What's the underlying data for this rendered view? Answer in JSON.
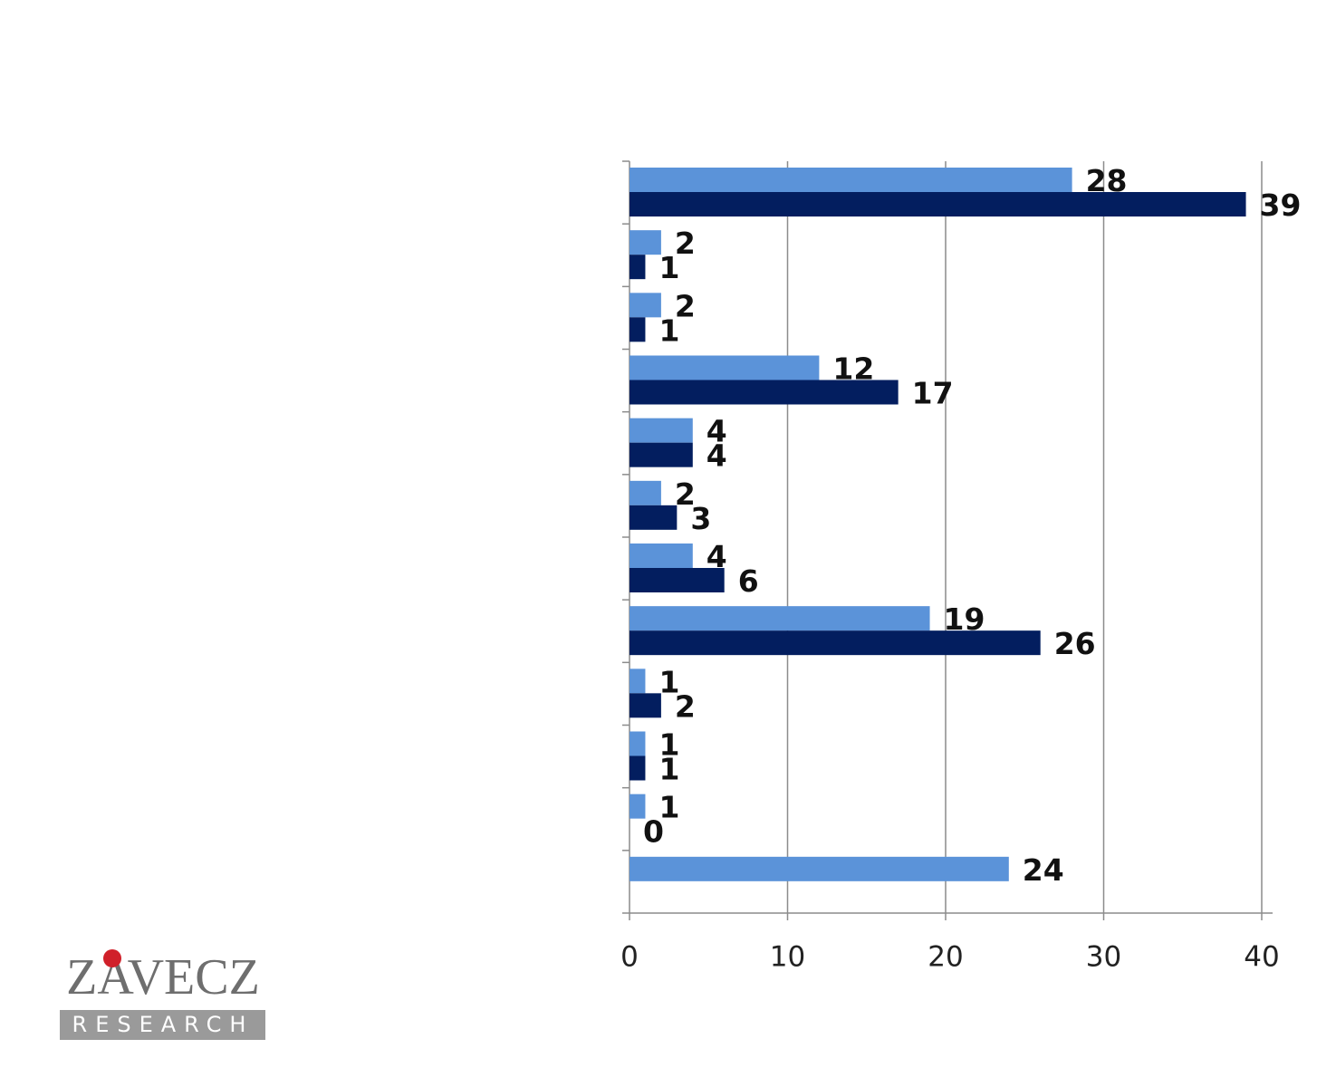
{
  "chart_data": {
    "type": "bar",
    "orientation": "horizontal",
    "categories": [
      null,
      null,
      null,
      null,
      null,
      null,
      null,
      null,
      null,
      null,
      null,
      null
    ],
    "series": [
      {
        "color": "#5b93d9",
        "values": [
          28,
          2,
          2,
          12,
          4,
          2,
          4,
          19,
          1,
          1,
          1,
          24
        ]
      },
      {
        "color": "#031e5f",
        "values": [
          39,
          1,
          1,
          17,
          4,
          3,
          6,
          26,
          2,
          1,
          0,
          null
        ]
      }
    ],
    "xlim": [
      0,
      40
    ],
    "xticks": [
      0,
      10,
      20,
      30,
      40
    ],
    "grid": true
  },
  "logo": {
    "name": "ZAVECZ",
    "tagline": "RESEARCH"
  }
}
